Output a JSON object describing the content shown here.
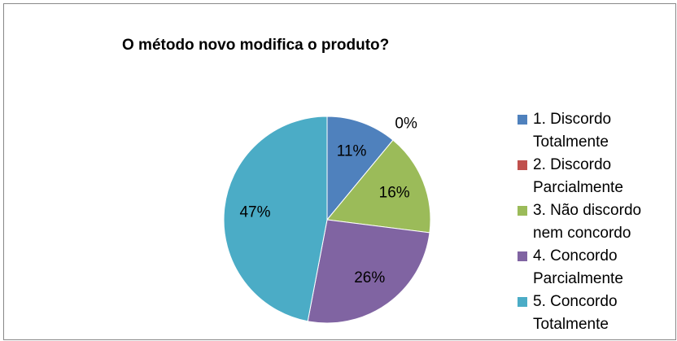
{
  "chart_data": {
    "type": "pie",
    "title": "O método novo modifica o produto?",
    "categories": [
      "1. Discordo Totalmente",
      "2. Discordo Parcialmente",
      "3. Não discordo nem concordo",
      "4. Concordo Parcialmente",
      "5. Concordo Totalmente"
    ],
    "values": [
      11,
      0,
      16,
      26,
      47
    ],
    "value_labels": [
      "11%",
      "0%",
      "16%",
      "26%",
      "47%"
    ],
    "colors": [
      "#4f81bd",
      "#c0504d",
      "#9bbb59",
      "#8064a2",
      "#4bacc6"
    ],
    "legend": "right"
  }
}
